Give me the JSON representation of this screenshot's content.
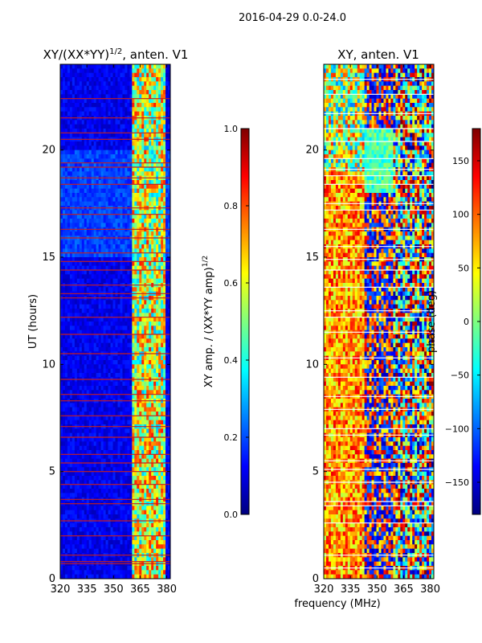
{
  "suptitle": "2016-04-29 0.0-24.0",
  "xlabel": "frequency (MHz)",
  "colors": {
    "jet_stops": [
      "#00007f",
      "#0000ff",
      "#007fff",
      "#00ffff",
      "#7fff7f",
      "#ffff00",
      "#ff7f00",
      "#ff0000",
      "#7f0000"
    ],
    "flag_line": "#c81e1e",
    "flag_white": "#ffffff",
    "flag_yellow": "#f0f050"
  },
  "chart_data": [
    {
      "type": "heatmap",
      "title_main": "XY/(XX*YY)",
      "title_sup": "1/2",
      "title_rest": ", anten. V1",
      "ylabel": "UT (hours)",
      "xlim": [
        320,
        382
      ],
      "ylim": [
        0,
        24
      ],
      "xticks": [
        320,
        335,
        350,
        365,
        380
      ],
      "yticks": [
        0,
        5,
        10,
        15,
        20
      ],
      "colorbar": {
        "label_main": "XY amp. / (XX*YY amp)",
        "label_sup": "1/2",
        "range": [
          0,
          1
        ],
        "ticks": [
          "0.0",
          "0.2",
          "0.4",
          "0.6",
          "0.8",
          "1.0"
        ],
        "tick_values": [
          0,
          0.2,
          0.4,
          0.6,
          0.8,
          1.0
        ]
      },
      "flag_hours": [
        0.7,
        0.8,
        1.1,
        2.0,
        2.7,
        3.5,
        3.7,
        4.4,
        5.0,
        5.4,
        5.8,
        6.6,
        7.1,
        7.6,
        8.3,
        8.6,
        9.3,
        10.5,
        11.4,
        12.2,
        13.1,
        13.3,
        13.7,
        14.4,
        14.8,
        15.2,
        15.9,
        16.3,
        17.0,
        17.3,
        18.4,
        18.7,
        19.2,
        19.4,
        20.5,
        20.8,
        21.5,
        22.4
      ]
    },
    {
      "type": "heatmap",
      "title_main": "XY, anten. V1",
      "title_sup": "",
      "title_rest": "",
      "ylabel": "",
      "xlim": [
        320,
        382
      ],
      "ylim": [
        0,
        24
      ],
      "xticks": [
        320,
        335,
        350,
        365,
        380
      ],
      "yticks": [
        0,
        5,
        10,
        15,
        20
      ],
      "colorbar": {
        "label_main": "phase (deg)",
        "label_sup": "",
        "range": [
          -180,
          180
        ],
        "ticks": [
          "−150",
          "−100",
          "−50",
          "0",
          "50",
          "100",
          "150"
        ],
        "tick_values": [
          -150,
          -100,
          -50,
          0,
          50,
          100,
          150
        ]
      },
      "flag_hours": [
        0.5,
        1.1,
        2.6,
        3.4,
        3.6,
        4.5,
        5.1,
        5.5,
        6.7,
        7.0,
        7.9,
        8.5,
        9.4,
        10.3,
        11.5,
        12.2,
        12.5,
        13.6,
        14.4,
        14.9,
        15.5,
        16.3,
        17.2,
        17.5,
        18.4,
        18.8,
        19.1,
        19.6,
        20.4,
        21.0,
        21.7,
        22.6,
        23.3
      ]
    }
  ]
}
